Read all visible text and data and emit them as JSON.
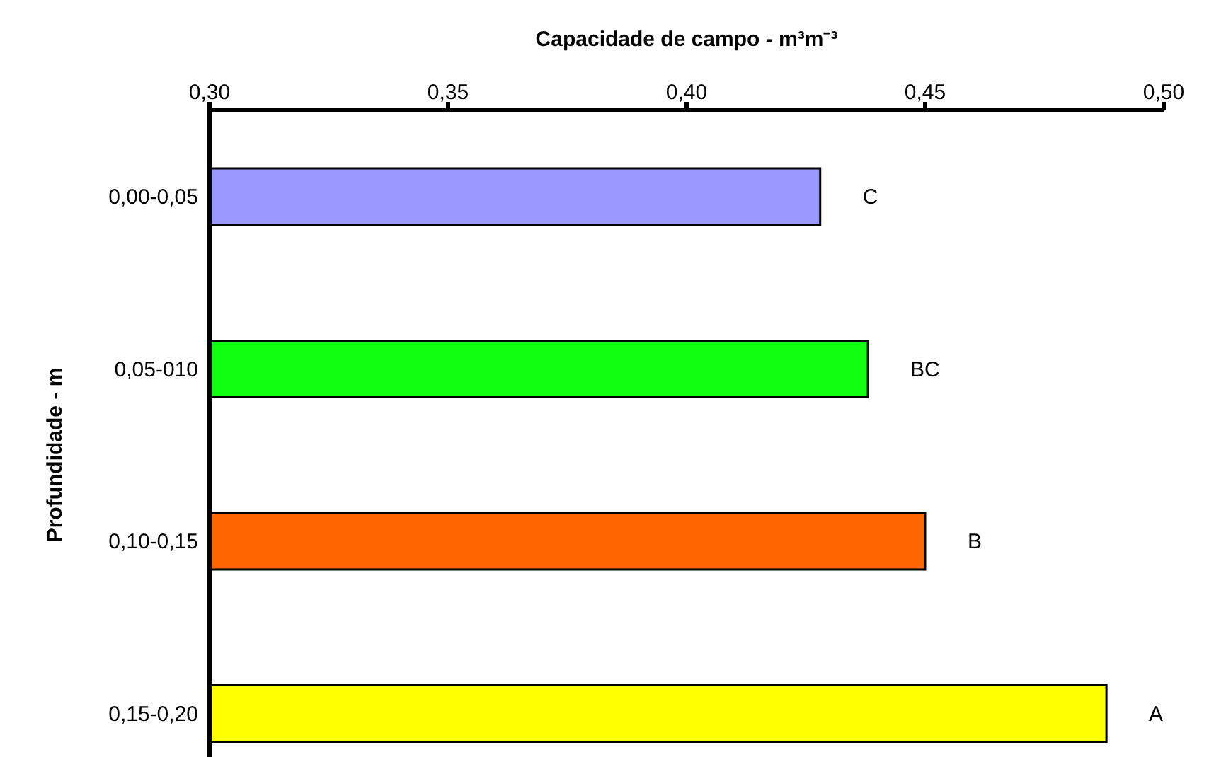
{
  "chart_data": {
    "type": "bar",
    "orientation": "horizontal",
    "xlabel": "Capacidade de campo - m³m⁻³",
    "ylabel": "Profundidade - m",
    "categories": [
      "0,00-0,05",
      "0,05-010",
      "0,10-0,15",
      "0,15-0,20"
    ],
    "values": [
      0.428,
      0.438,
      0.45,
      0.488
    ],
    "colors": [
      "#9999ff",
      "#11ff11",
      "#ff6600",
      "#ffff00"
    ],
    "xlim": [
      0.3,
      0.5
    ],
    "xticks": [
      {
        "value": 0.3,
        "label": "0,30"
      },
      {
        "value": 0.35,
        "label": "0,35"
      },
      {
        "value": 0.4,
        "label": "0,40"
      },
      {
        "value": 0.45,
        "label": "0,45"
      },
      {
        "value": 0.5,
        "label": "0,50"
      }
    ],
    "grid": false,
    "annotations": [
      {
        "text": "C",
        "x": 0.428,
        "y": "0,00-0,05"
      },
      {
        "text": "BC",
        "x": 0.438,
        "y": "0,05-010"
      },
      {
        "text": "B",
        "x": 0.45,
        "y": "0,10-0,15"
      },
      {
        "text": "A",
        "x": 0.488,
        "y": "0,15-0,20"
      }
    ]
  }
}
